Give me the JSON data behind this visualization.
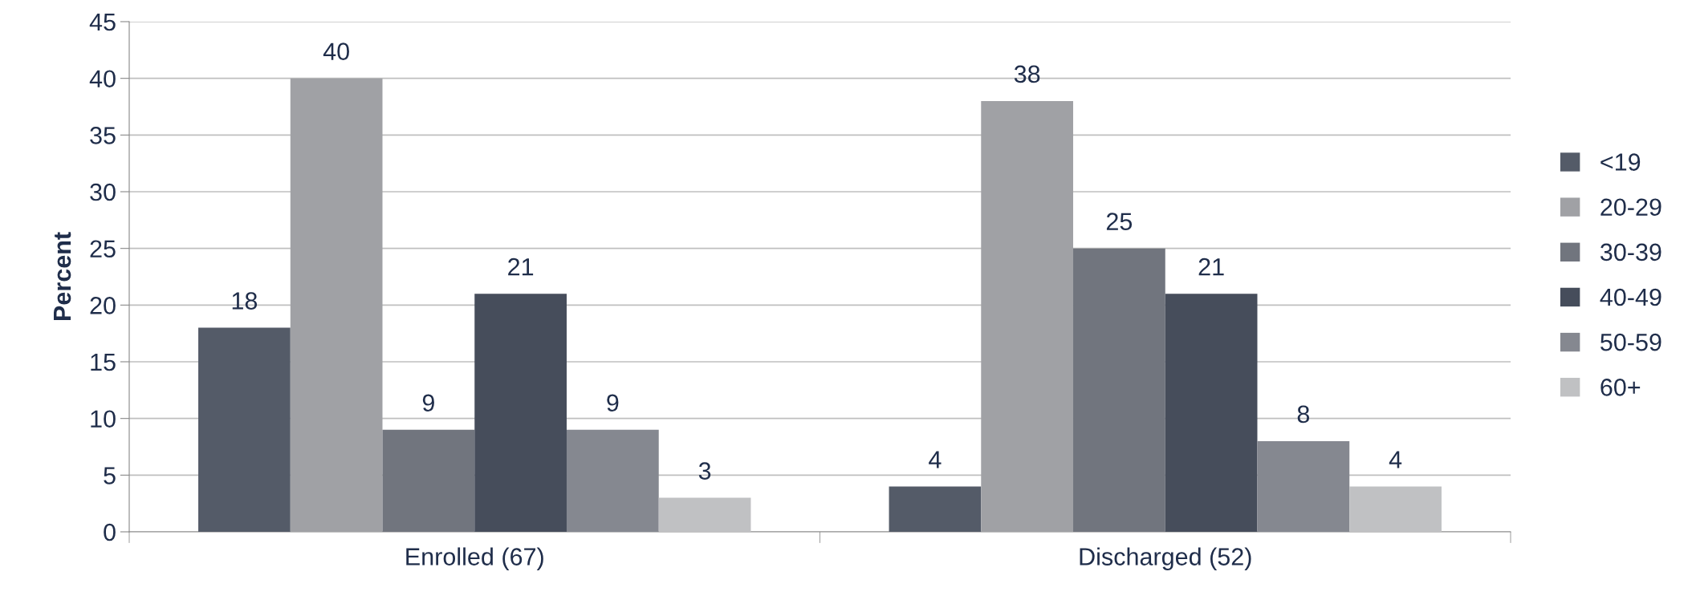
{
  "chart_data": {
    "type": "bar",
    "ylabel": "Percent",
    "categories": [
      "Enrolled (67)",
      "Discharged (52)"
    ],
    "series": [
      {
        "name": "<19",
        "color": "#545b68",
        "values": [
          18,
          4
        ]
      },
      {
        "name": "20-29",
        "color": "#a0a1a5",
        "values": [
          40,
          38
        ]
      },
      {
        "name": "30-39",
        "color": "#71757e",
        "values": [
          9,
          25
        ]
      },
      {
        "name": "40-49",
        "color": "#464d5b",
        "values": [
          21,
          21
        ]
      },
      {
        "name": "50-59",
        "color": "#858890",
        "values": [
          9,
          8
        ]
      },
      {
        "name": "60+",
        "color": "#c0c1c3",
        "values": [
          3,
          4
        ]
      }
    ],
    "ylim": [
      0,
      45
    ],
    "yticks": [
      0,
      5,
      10,
      15,
      20,
      25,
      30,
      35,
      40,
      45
    ],
    "grid": "y",
    "legend": "right",
    "data_labels": true
  }
}
